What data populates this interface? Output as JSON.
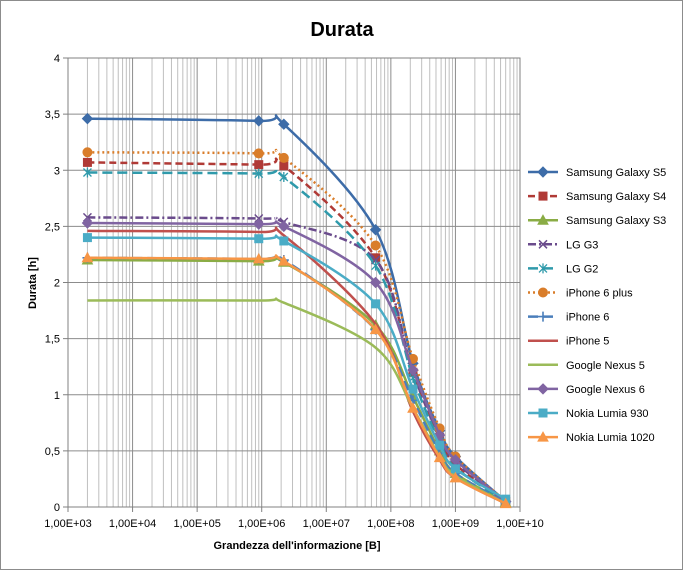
{
  "chart_data": {
    "type": "line",
    "title": "Durata",
    "xlabel": "Grandezza dell'informazione  [B]",
    "ylabel": "Durata [h]",
    "xscale": "log",
    "xlim": [
      1000,
      10000000000
    ],
    "ylim": [
      0,
      4
    ],
    "grid": true,
    "legend_position": "right",
    "x_tick_labels": [
      "1,00E+03",
      "1,00E+04",
      "1,00E+05",
      "1,00E+06",
      "1,00E+07",
      "1,00E+08",
      "1,00E+09",
      "1,00E+10"
    ],
    "y_tick_labels": [
      "0",
      "0,5",
      "1",
      "1,5",
      "2",
      "2,5",
      "3",
      "3,5",
      "4"
    ],
    "x": [
      2000,
      900000,
      2200000,
      58000000,
      220000000,
      570000000,
      1000000000,
      6000000000
    ],
    "series": [
      {
        "name": "Samsung Galaxy S5",
        "color": "#3d6ca8",
        "dash": "solid",
        "marker": "diamond",
        "values": [
          3.46,
          3.44,
          3.41,
          2.47,
          1.28,
          0.68,
          0.45,
          0.05
        ]
      },
      {
        "name": "Samsung Galaxy S4",
        "color": "#b03a36",
        "dash": "dash",
        "marker": "square",
        "values": [
          3.07,
          3.05,
          3.04,
          2.22,
          1.2,
          0.62,
          0.38,
          0.05
        ]
      },
      {
        "name": "Samsung Galaxy S3",
        "color": "#8aac45",
        "dash": "solid",
        "marker": "triangle",
        "values": [
          2.2,
          2.19,
          2.18,
          1.62,
          0.98,
          0.5,
          0.3,
          0.04
        ]
      },
      {
        "name": "LG G3",
        "color": "#6a4b8c",
        "dash": "dashdot",
        "marker": "x",
        "values": [
          2.58,
          2.57,
          2.54,
          2.2,
          1.2,
          0.62,
          0.4,
          0.05
        ]
      },
      {
        "name": "LG G2",
        "color": "#2f9aab",
        "dash": "longdash",
        "marker": "star",
        "values": [
          2.98,
          2.97,
          2.94,
          2.15,
          1.15,
          0.58,
          0.35,
          0.05
        ]
      },
      {
        "name": "iPhone 6 plus",
        "color": "#d97d2a",
        "dash": "dot",
        "marker": "circle",
        "values": [
          3.16,
          3.15,
          3.11,
          2.33,
          1.32,
          0.7,
          0.45,
          0.05
        ]
      },
      {
        "name": "iPhone 6",
        "color": "#4a7ebb",
        "dash": "longdash",
        "marker": "plus",
        "values": [
          2.22,
          2.21,
          2.2,
          1.58,
          0.95,
          0.48,
          0.3,
          0.04
        ]
      },
      {
        "name": "iPhone 5",
        "color": "#c0504d",
        "dash": "solid",
        "marker": "none",
        "values": [
          2.46,
          2.45,
          2.42,
          1.63,
          0.85,
          0.42,
          0.26,
          0.03
        ]
      },
      {
        "name": "Google Nexus 5",
        "color": "#9bbb59",
        "dash": "solid",
        "marker": "none",
        "values": [
          1.84,
          1.84,
          1.82,
          1.42,
          0.88,
          0.45,
          0.28,
          0.03
        ]
      },
      {
        "name": "Google Nexus 6",
        "color": "#8064a2",
        "dash": "solid",
        "marker": "diamond",
        "values": [
          2.53,
          2.52,
          2.5,
          2.0,
          1.22,
          0.64,
          0.42,
          0.05
        ]
      },
      {
        "name": "Nokia Lumia 930",
        "color": "#4bacc6",
        "dash": "solid",
        "marker": "square",
        "values": [
          2.4,
          2.39,
          2.37,
          1.81,
          1.05,
          0.55,
          0.34,
          0.07
        ]
      },
      {
        "name": "Nokia Lumia 1020",
        "color": "#f79646",
        "dash": "solid",
        "marker": "triangle",
        "values": [
          2.22,
          2.21,
          2.19,
          1.58,
          0.88,
          0.44,
          0.26,
          0.03
        ]
      }
    ]
  }
}
